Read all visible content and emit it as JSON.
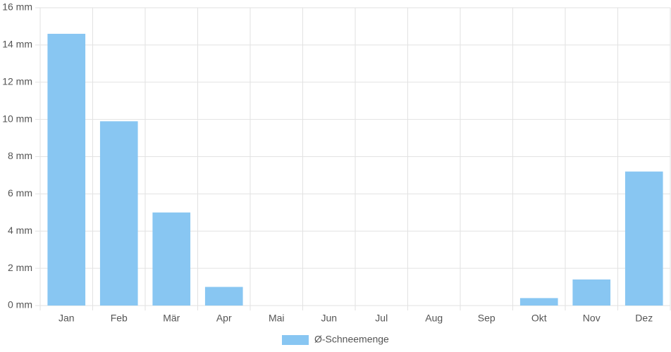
{
  "chart_data": {
    "type": "bar",
    "categories": [
      "Jan",
      "Feb",
      "Mär",
      "Apr",
      "Mai",
      "Jun",
      "Jul",
      "Aug",
      "Sep",
      "Okt",
      "Nov",
      "Dez"
    ],
    "series": [
      {
        "name": "Ø-Schneemenge",
        "color": "#88c6f2",
        "values": [
          14.6,
          9.9,
          5.0,
          1.0,
          0,
          0,
          0,
          0,
          0,
          0.4,
          1.4,
          7.2
        ]
      }
    ],
    "ylim": [
      0,
      16
    ],
    "yticks": [
      {
        "value": 0,
        "label": "0 mm"
      },
      {
        "value": 2,
        "label": "2 mm"
      },
      {
        "value": 4,
        "label": "4 mm"
      },
      {
        "value": 6,
        "label": "6 mm"
      },
      {
        "value": 8,
        "label": "8 mm"
      },
      {
        "value": 10,
        "label": "10 mm"
      },
      {
        "value": 12,
        "label": "12 mm"
      },
      {
        "value": 14,
        "label": "14 mm"
      },
      {
        "value": 16,
        "label": "16 mm"
      }
    ],
    "grid": true,
    "legend": "bottom"
  }
}
